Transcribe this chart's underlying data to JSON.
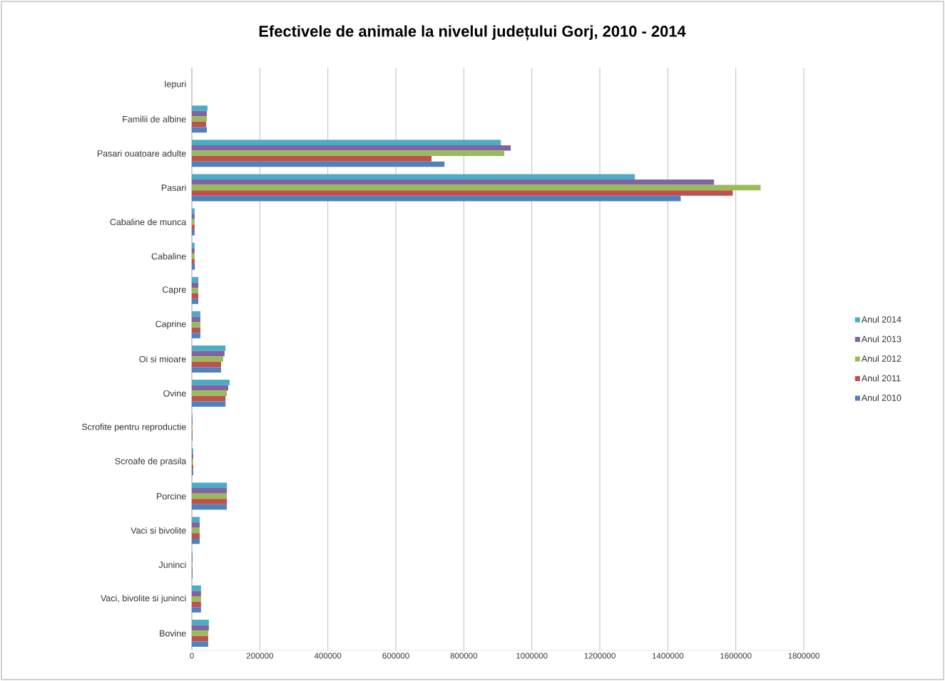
{
  "chart_data": {
    "type": "bar",
    "orientation": "horizontal",
    "title": "Efectivele de animale la nivelul județului Gorj, 2010 - 2014",
    "categories": [
      "Iepuri",
      "Familii de albine",
      "Pasari ouatoare adulte",
      "Pasari",
      "Cabaline de munca",
      "Cabaline",
      "Capre",
      "Caprine",
      "Oi si mioare",
      "Ovine",
      "Scrofite pentru reproductie",
      "Scroafe de prasila",
      "Porcine",
      "Vaci si bivolite",
      "Juninci",
      "Vaci, bivolite si juninci",
      "Bovine"
    ],
    "series": [
      {
        "name": "Anul 2014",
        "color": "#4bacc6",
        "values": [
          null,
          46000,
          909000,
          1303000,
          8000,
          8000,
          19000,
          25000,
          99000,
          111000,
          2000,
          4000,
          103000,
          23000,
          2000,
          27000,
          50000
        ]
      },
      {
        "name": "Anul 2013",
        "color": "#8064a2",
        "values": [
          null,
          44000,
          938000,
          1536000,
          8000,
          8000,
          19000,
          25000,
          96000,
          107000,
          2000,
          4000,
          103000,
          23000,
          2000,
          27000,
          50000
        ]
      },
      {
        "name": "Anul 2012",
        "color": "#9bbb59",
        "values": [
          null,
          44000,
          919000,
          1673000,
          8000,
          8000,
          19000,
          25000,
          92000,
          103000,
          2000,
          4000,
          103000,
          23000,
          2000,
          27000,
          48000
        ]
      },
      {
        "name": "Anul 2011",
        "color": "#c0504d",
        "values": [
          null,
          42000,
          705000,
          1591000,
          8000,
          8000,
          19000,
          25000,
          86000,
          99000,
          2000,
          4000,
          103000,
          23000,
          2000,
          27000,
          48000
        ]
      },
      {
        "name": "Anul 2010",
        "color": "#4f81bd",
        "values": [
          null,
          44000,
          743000,
          1438000,
          8000,
          9000,
          19000,
          25000,
          86000,
          99000,
          2000,
          4000,
          103000,
          23000,
          2000,
          27000,
          48000
        ]
      }
    ],
    "xlim": [
      0,
      1800000
    ],
    "xticks": [
      0,
      200000,
      400000,
      600000,
      800000,
      1000000,
      1200000,
      1400000,
      1600000,
      1800000
    ],
    "grid": "x",
    "legend": "right"
  }
}
